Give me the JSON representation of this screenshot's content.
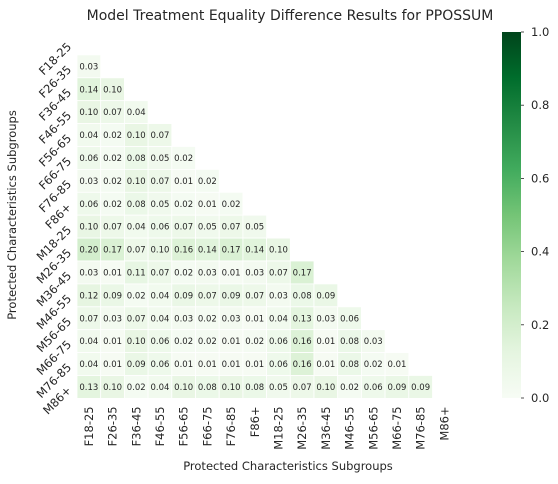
{
  "chart_data": {
    "type": "heatmap",
    "title": "Model Treatment Equality Difference Results for PPOSSUM",
    "xlabel": "Protected Characteristics Subgroups",
    "ylabel": "Protected Characteristics Subgroups",
    "row_labels": [
      "F18-25",
      "F26-35",
      "F36-45",
      "F46-55",
      "F56-65",
      "F66-75",
      "F76-85",
      "F86+",
      "M18-25",
      "M26-35",
      "M36-45",
      "M46-55",
      "M56-65",
      "M66-75",
      "M76-85",
      "M86+"
    ],
    "col_labels": [
      "F18-25",
      "F26-35",
      "F36-45",
      "F46-55",
      "F56-65",
      "F66-75",
      "F76-85",
      "F86+",
      "M18-25",
      "M26-35",
      "M36-45",
      "M46-55",
      "M56-65",
      "M66-75",
      "M76-85",
      "M86+"
    ],
    "mask": "upper-triangle-and-diagonal",
    "values": [
      [],
      [
        "0.03"
      ],
      [
        "0.14",
        "0.10"
      ],
      [
        "0.10",
        "0.07",
        "0.04"
      ],
      [
        "0.04",
        "0.02",
        "0.10",
        "0.07"
      ],
      [
        "0.06",
        "0.02",
        "0.08",
        "0.05",
        "0.02"
      ],
      [
        "0.03",
        "0.02",
        "0.10",
        "0.07",
        "0.01",
        "0.02"
      ],
      [
        "0.06",
        "0.02",
        "0.08",
        "0.05",
        "0.02",
        "0.01",
        "0.02"
      ],
      [
        "0.10",
        "0.07",
        "0.04",
        "0.06",
        "0.07",
        "0.05",
        "0.07",
        "0.05"
      ],
      [
        "0.20",
        "0.17",
        "0.07",
        "0.10",
        "0.16",
        "0.14",
        "0.17",
        "0.14",
        "0.10"
      ],
      [
        "0.03",
        "0.01",
        "0.11",
        "0.07",
        "0.02",
        "0.03",
        "0.01",
        "0.03",
        "0.07",
        "0.17"
      ],
      [
        "0.12",
        "0.09",
        "0.02",
        "0.04",
        "0.09",
        "0.07",
        "0.09",
        "0.07",
        "0.03",
        "0.08",
        "0.09"
      ],
      [
        "0.07",
        "0.03",
        "0.07",
        "0.04",
        "0.03",
        "0.02",
        "0.03",
        "0.01",
        "0.04",
        "0.13",
        "0.03",
        "0.06"
      ],
      [
        "0.04",
        "0.01",
        "0.10",
        "0.06",
        "0.02",
        "0.02",
        "0.01",
        "0.02",
        "0.06",
        "0.16",
        "0.01",
        "0.08",
        "0.03"
      ],
      [
        "0.04",
        "0.01",
        "0.09",
        "0.06",
        "0.01",
        "0.01",
        "0.01",
        "0.01",
        "0.06",
        "0.16",
        "0.01",
        "0.08",
        "0.02",
        "0.01"
      ],
      [
        "0.13",
        "0.10",
        "0.02",
        "0.04",
        "0.10",
        "0.08",
        "0.10",
        "0.08",
        "0.05",
        "0.07",
        "0.10",
        "0.02",
        "0.06",
        "0.09",
        "0.09"
      ]
    ],
    "colorbar": {
      "min": 0.0,
      "max": 1.0,
      "ticks": [
        "0.0",
        "0.2",
        "0.4",
        "0.6",
        "0.8",
        "1.0"
      ],
      "colormap": "Greens",
      "color_low": "#f7fcf5",
      "color_high": "#00441b"
    },
    "cell_line_color": "#ffffff",
    "text_color": "#262626"
  }
}
